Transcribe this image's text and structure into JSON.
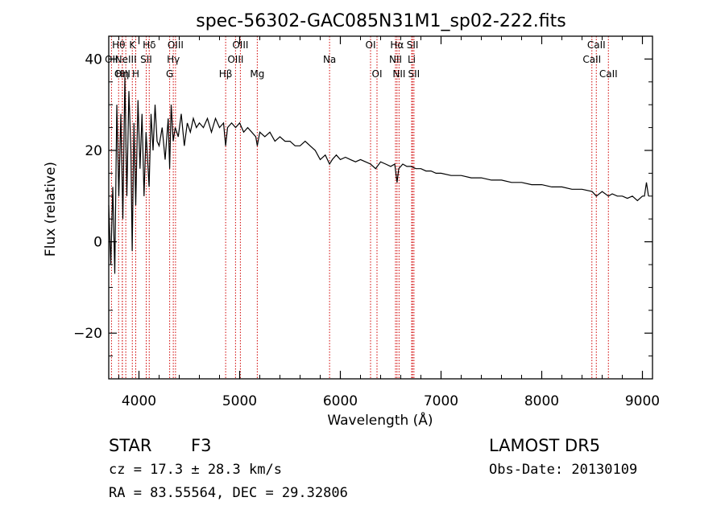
{
  "chart_data": {
    "type": "line",
    "title": "spec-56302-GAC085N31M1_sp02-222.fits",
    "xlabel": "Wavelength (Å)",
    "ylabel": "Flux (relative)",
    "xlim": [
      3700,
      9100
    ],
    "ylim": [
      -30,
      45
    ],
    "xticks": [
      4000,
      5000,
      6000,
      7000,
      8000,
      9000
    ],
    "yticks": [
      -20,
      0,
      20,
      40
    ],
    "line_color": "#000000",
    "marker_color": "#d00000",
    "series": [
      {
        "x": [
          3700,
          3720,
          3740,
          3760,
          3780,
          3800,
          3820,
          3840,
          3860,
          3880,
          3900,
          3920,
          3933,
          3950,
          3968,
          3990,
          4010,
          4030,
          4050,
          4070,
          4101,
          4120,
          4140,
          4160,
          4180,
          4200,
          4230,
          4260,
          4290,
          4305,
          4320,
          4340,
          4360,
          4390,
          4420,
          4450,
          4480,
          4510,
          4540,
          4570,
          4600,
          4640,
          4680,
          4720,
          4760,
          4800,
          4840,
          4861,
          4880,
          4920,
          4960,
          5000,
          5040,
          5080,
          5120,
          5160,
          5175,
          5200,
          5250,
          5300,
          5350,
          5400,
          5450,
          5500,
          5550,
          5600,
          5650,
          5700,
          5750,
          5800,
          5850,
          5893,
          5920,
          5960,
          6000,
          6050,
          6100,
          6150,
          6200,
          6250,
          6300,
          6350,
          6400,
          6450,
          6500,
          6540,
          6563,
          6580,
          6620,
          6660,
          6700,
          6750,
          6800,
          6850,
          6900,
          6950,
          7000,
          7100,
          7200,
          7300,
          7400,
          7500,
          7600,
          7700,
          7800,
          7900,
          8000,
          8100,
          8200,
          8300,
          8400,
          8500,
          8542,
          8600,
          8662,
          8700,
          8750,
          8800,
          8850,
          8900,
          8950,
          9000,
          9020,
          9040,
          9060
        ],
        "y": [
          8,
          -5,
          12,
          -7,
          30,
          10,
          28,
          5,
          36,
          10,
          33,
          20,
          -2,
          26,
          8,
          31,
          16,
          28,
          10,
          24,
          12,
          28,
          20,
          30,
          22,
          21,
          25,
          18,
          27,
          16,
          30,
          22,
          25,
          23,
          28,
          21,
          26,
          24,
          27,
          25,
          26,
          25,
          27,
          24,
          27,
          25,
          26,
          21,
          25,
          26,
          25,
          26,
          24,
          25,
          24,
          23,
          21,
          24,
          23,
          24,
          22,
          23,
          22,
          22,
          21,
          21,
          22,
          21,
          20,
          18,
          19,
          17,
          18,
          19,
          18,
          18.5,
          18,
          17.5,
          18,
          17.5,
          17,
          16,
          17.5,
          17,
          16.5,
          17,
          13,
          16,
          17,
          16.5,
          16.5,
          16,
          16,
          15.5,
          15.5,
          15,
          15,
          14.5,
          14.5,
          14,
          14,
          13.5,
          13.5,
          13,
          13,
          12.5,
          12.5,
          12,
          12,
          11.5,
          11.5,
          11,
          10,
          11,
          10,
          10.5,
          10,
          10,
          9.5,
          10,
          9,
          10,
          10,
          13,
          10
        ]
      }
    ],
    "line_markers": [
      {
        "label": "OII",
        "x": 3727,
        "row": 1
      },
      {
        "label": "Hθ",
        "x": 3798,
        "row": 0
      },
      {
        "label": "OIII",
        "x": 3835,
        "row": 2
      },
      {
        "label": "Hη",
        "x": 3835,
        "row": 2
      },
      {
        "label": "NeIII",
        "x": 3869,
        "row": 1
      },
      {
        "label": "K",
        "x": 3934,
        "row": 0
      },
      {
        "label": "H",
        "x": 3968,
        "row": 2
      },
      {
        "label": "SII",
        "x": 4072,
        "row": 1
      },
      {
        "label": "Hδ",
        "x": 4102,
        "row": 0
      },
      {
        "label": "G",
        "x": 4305,
        "row": 2
      },
      {
        "label": "Hγ",
        "x": 4341,
        "row": 1
      },
      {
        "label": "OIII",
        "x": 4363,
        "row": 0
      },
      {
        "label": "Hβ",
        "x": 4861,
        "row": 2
      },
      {
        "label": "OIII",
        "x": 4959,
        "row": 1
      },
      {
        "label": "OIII",
        "x": 5007,
        "row": 0
      },
      {
        "label": "Mg",
        "x": 5175,
        "row": 2
      },
      {
        "label": "Na",
        "x": 5893,
        "row": 1
      },
      {
        "label": "OI",
        "x": 6300,
        "row": 0
      },
      {
        "label": "OI",
        "x": 6364,
        "row": 2
      },
      {
        "label": "NII",
        "x": 6548,
        "row": 1
      },
      {
        "label": "Hα",
        "x": 6563,
        "row": 0
      },
      {
        "label": "NII",
        "x": 6583,
        "row": 2
      },
      {
        "label": "Li",
        "x": 6708,
        "row": 1
      },
      {
        "label": "SII",
        "x": 6717,
        "row": 0
      },
      {
        "label": "SII",
        "x": 6731,
        "row": 2
      },
      {
        "label": "CaII",
        "x": 8498,
        "row": 1
      },
      {
        "label": "CaII",
        "x": 8542,
        "row": 0
      },
      {
        "label": "CaII",
        "x": 8662,
        "row": 2
      }
    ]
  },
  "info": {
    "class_label": "STAR",
    "subclass": "F3",
    "cz": "cz = 17.3 ± 28.3 km/s",
    "radec": "RA =  83.55564, DEC =  29.32806",
    "survey": "LAMOST DR5",
    "obs_date": "Obs-Date: 20130109"
  }
}
